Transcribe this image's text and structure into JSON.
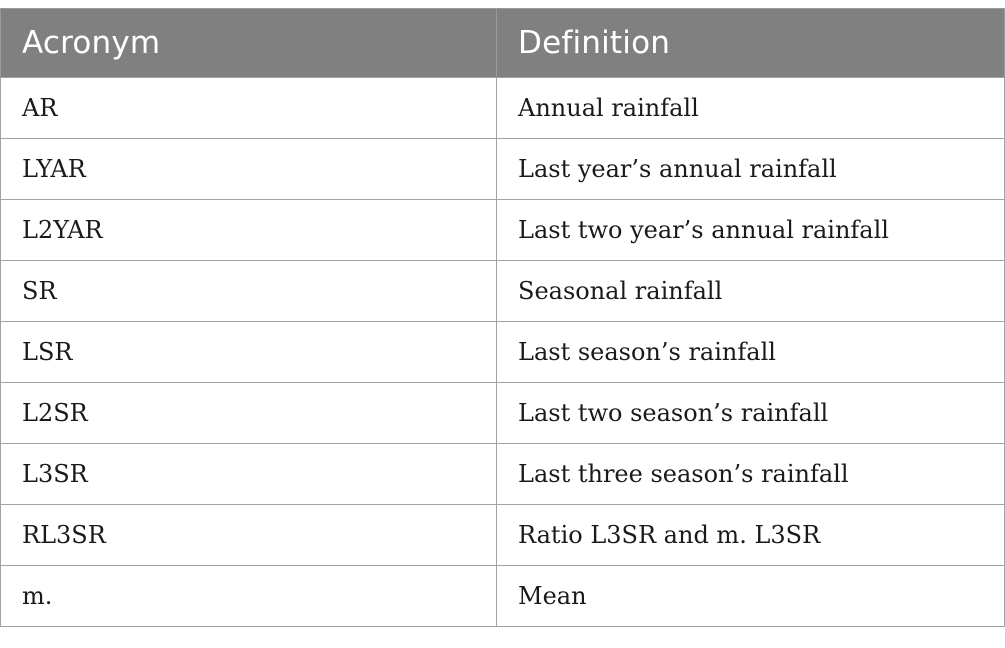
{
  "table": {
    "headers": [
      "Acronym",
      "Definition"
    ],
    "rows": [
      {
        "acronym": "AR",
        "definition": "Annual rainfall"
      },
      {
        "acronym": "LYAR",
        "definition": "Last year’s annual rainfall"
      },
      {
        "acronym": "L2YAR",
        "definition": "Last two year’s annual rainfall"
      },
      {
        "acronym": "SR",
        "definition": "Seasonal rainfall"
      },
      {
        "acronym": "LSR",
        "definition": "Last season’s rainfall"
      },
      {
        "acronym": "L2SR",
        "definition": "Last two season’s rainfall"
      },
      {
        "acronym": "L3SR",
        "definition": "Last three season’s rainfall"
      },
      {
        "acronym": "RL3SR",
        "definition": "Ratio L3SR and m. L3SR"
      },
      {
        "acronym": "m.",
        "definition": "Mean"
      }
    ]
  },
  "colors": {
    "header_background": "#808080",
    "header_text": "#ffffff",
    "border": "#a3a3a3"
  }
}
